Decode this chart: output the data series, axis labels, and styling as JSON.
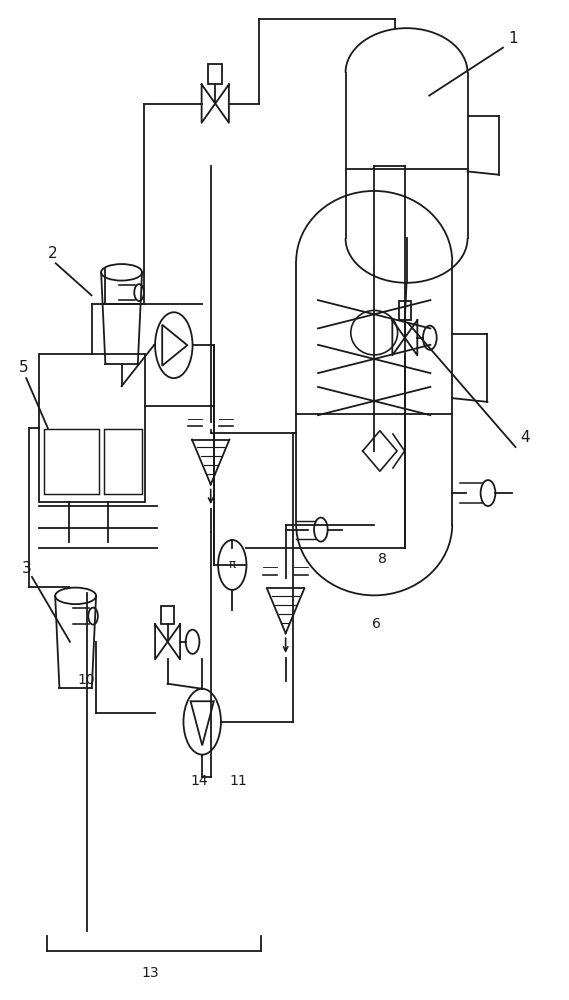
{
  "bg_color": "#ffffff",
  "line_color": "#1a1a1a",
  "lw": 1.3,
  "fig_width": 5.69,
  "fig_height": 10.0,
  "dpi": 100
}
